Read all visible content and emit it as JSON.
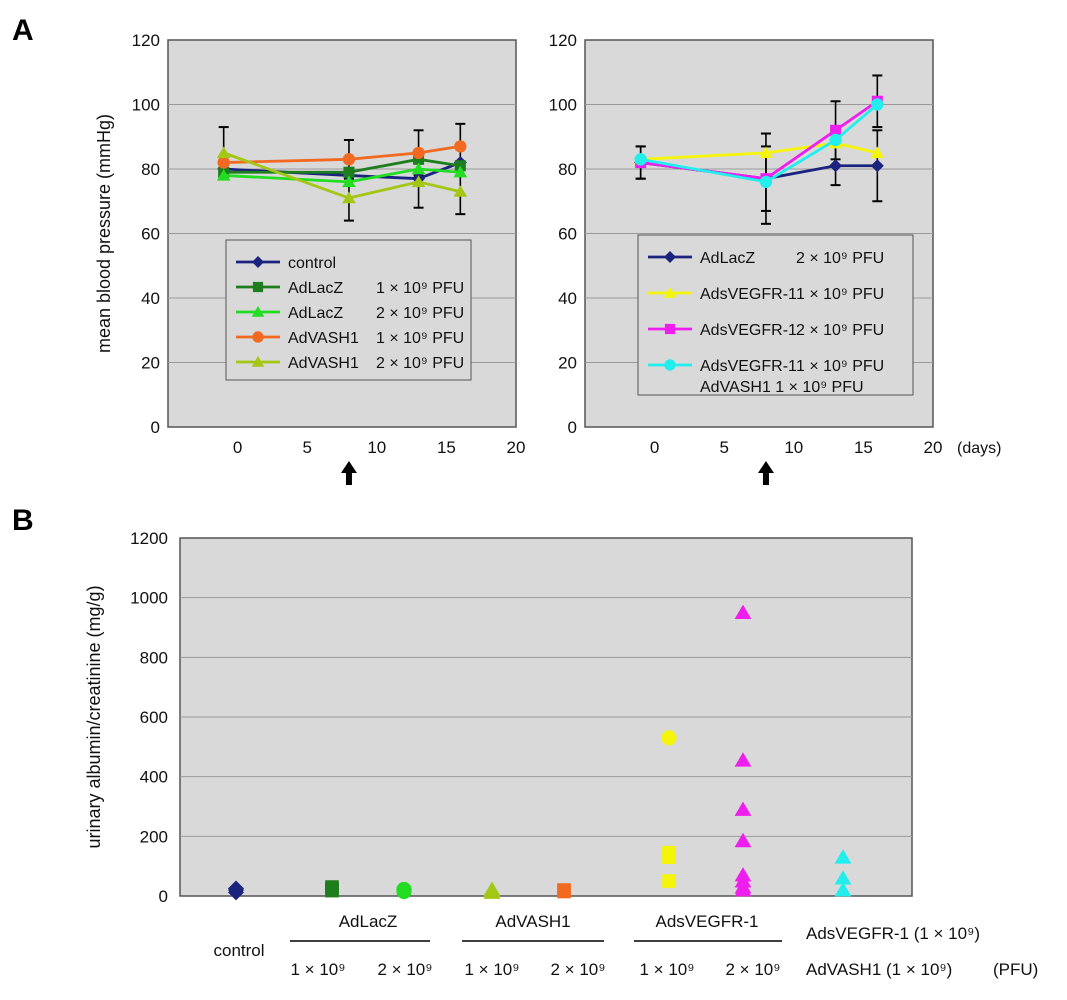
{
  "panel_labels": {
    "a": "A",
    "b": "B"
  },
  "chart_data": [
    {
      "type": "line",
      "panel": "A-left",
      "ylabel": "mean blood pressure (mmHg)",
      "xlabel": "",
      "ylim": [
        0,
        120
      ],
      "xlim": [
        -5,
        20
      ],
      "yticks": [
        "0",
        "20",
        "40",
        "60",
        "80",
        "100",
        "120"
      ],
      "xticks": [
        "0",
        "5",
        "10",
        "15",
        "20"
      ],
      "yticks_values": [
        0,
        20,
        40,
        60,
        80,
        100,
        120
      ],
      "xticks_values": [
        0,
        5,
        10,
        15,
        20
      ],
      "arrow_day": 8,
      "x": [
        -1,
        8,
        13,
        16
      ],
      "series": [
        {
          "name": "control",
          "dose": "",
          "color": "#1a237e",
          "marker": "diamond",
          "values": [
            80,
            78,
            77,
            82
          ],
          "err": [
            0,
            0,
            0,
            0
          ]
        },
        {
          "name": "AdLacZ",
          "dose": "1 × 10⁹ PFU",
          "color": "#1e7e1e",
          "marker": "square",
          "values": [
            79,
            79,
            83,
            81
          ],
          "err": [
            0,
            0,
            0,
            0
          ]
        },
        {
          "name": "AdLacZ",
          "dose": "2 × 10⁹ PFU",
          "color": "#22dd22",
          "marker": "triangle",
          "values": [
            78,
            76,
            80,
            79
          ],
          "err": [
            0,
            0,
            0,
            0
          ]
        },
        {
          "name": "AdVASH1",
          "dose": "1 × 10⁹ PFU",
          "color": "#f26a21",
          "marker": "circle",
          "values": [
            82,
            83,
            85,
            87
          ],
          "err": [
            0,
            6,
            7,
            7
          ]
        },
        {
          "name": "AdVASH1",
          "dose": "2 × 10⁹ PFU",
          "color": "#a4c614",
          "marker": "triangle",
          "values": [
            85,
            71,
            76,
            73
          ],
          "err": [
            8,
            7,
            8,
            7
          ]
        }
      ]
    },
    {
      "type": "line",
      "panel": "A-right",
      "ylabel": "",
      "xlabel": "(days)",
      "ylim": [
        0,
        120
      ],
      "xlim": [
        -5,
        20
      ],
      "yticks": [
        "0",
        "20",
        "40",
        "60",
        "80",
        "100",
        "120"
      ],
      "xticks": [
        "0",
        "5",
        "10",
        "15",
        "20"
      ],
      "yticks_values": [
        0,
        20,
        40,
        60,
        80,
        100,
        120
      ],
      "xticks_values": [
        0,
        5,
        10,
        15,
        20
      ],
      "arrow_day": 8,
      "x": [
        -1,
        8,
        13,
        16
      ],
      "series": [
        {
          "name": "AdLacZ",
          "dose": "2 × 10⁹ PFU",
          "name2": "",
          "color": "#1a237e",
          "marker": "diamond",
          "values": [
            82,
            77,
            81,
            81
          ],
          "err": [
            5,
            10,
            6,
            11
          ]
        },
        {
          "name": "AdsVEGFR-1",
          "dose": "1 × 10⁹ PFU",
          "name2": "",
          "color": "#f5f50a",
          "marker": "triangle",
          "values": [
            83,
            85,
            88,
            85
          ],
          "err": [
            0,
            0,
            0,
            0
          ]
        },
        {
          "name": "AdsVEGFR-1",
          "dose": "2 × 10⁹ PFU",
          "name2": "",
          "color": "#ee1fee",
          "marker": "square",
          "values": [
            82,
            77,
            92,
            101
          ],
          "err": [
            5,
            14,
            9,
            8
          ]
        },
        {
          "name": "AdsVEGFR-1",
          "dose": "1 × 10⁹ PFU",
          "name2": "AdVASH1 1 × 10⁹ PFU",
          "color": "#22eeee",
          "marker": "circle",
          "values": [
            83,
            76,
            89,
            100
          ],
          "err": [
            0,
            0,
            0,
            0
          ]
        }
      ]
    },
    {
      "type": "scatter",
      "panel": "B",
      "ylabel": "urinary albumin/creatinine (mg/g)",
      "ylim": [
        0,
        1200
      ],
      "yticks": [
        "0",
        "200",
        "400",
        "600",
        "800",
        "1000",
        "1200"
      ],
      "yticks_values": [
        0,
        200,
        400,
        600,
        800,
        1000,
        1200
      ],
      "groups": [
        {
          "color": "#1a237e",
          "marker": "diamond",
          "values": [
            12,
            20,
            25
          ]
        },
        {
          "color": "#1e7e1e",
          "marker": "square",
          "values": [
            18,
            25,
            30
          ]
        },
        {
          "color": "#22dd22",
          "marker": "circle",
          "values": [
            15,
            20,
            22
          ]
        },
        {
          "color": "#a4c614",
          "marker": "triangle",
          "values": [
            12,
            18,
            22
          ]
        },
        {
          "color": "#f26a21",
          "marker": "square",
          "values": [
            15,
            20
          ]
        },
        {
          "color": "#f5f50a",
          "marker": "mixed",
          "values": [
            530,
            145,
            130,
            50
          ]
        },
        {
          "color": "#ee1fee",
          "marker": "triangle",
          "values": [
            950,
            455,
            290,
            185,
            70,
            50,
            30,
            20
          ]
        },
        {
          "color": "#22eeee",
          "marker": "triangle",
          "values": [
            130,
            60,
            20
          ]
        }
      ],
      "labels": {
        "control": "control",
        "adlacz": "AdLacZ",
        "advash1": "AdVASH1",
        "adsvegfr1": "AdsVEGFR-1",
        "dose1": "1 × 10⁹",
        "dose2": "2 × 10⁹",
        "combo1": "AdsVEGFR-1 (1 × 10⁹)",
        "combo2": "AdVASH1 (1 × 10⁹)",
        "pfu": "(PFU)"
      }
    }
  ]
}
